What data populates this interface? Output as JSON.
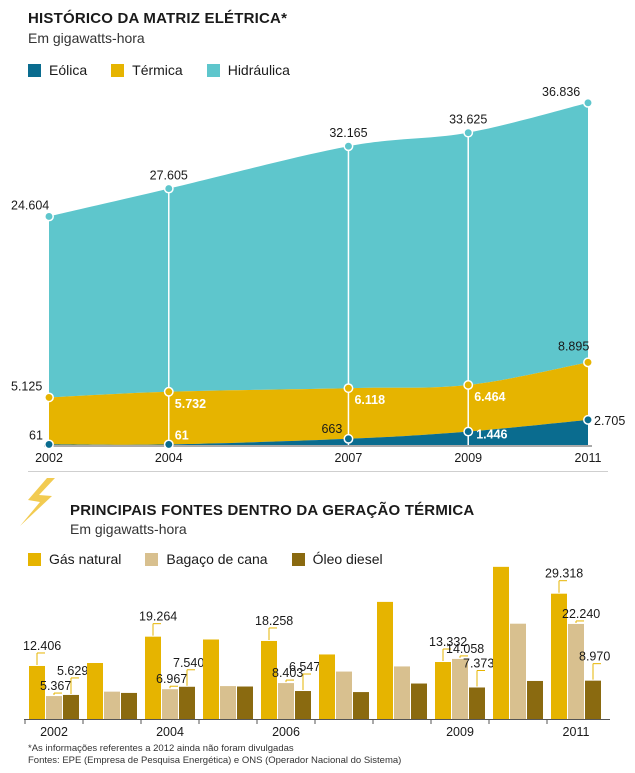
{
  "chart_data": [
    {
      "type": "area",
      "title": "HISTÓRICO DA MATRIZ ELÉTRICA*",
      "subtitle": "Em gigawatts-hora",
      "stacked": true,
      "x": [
        2002,
        2004,
        2007,
        2009,
        2011
      ],
      "x_labels": [
        "2002",
        "2004",
        "2007",
        "2009",
        "2011"
      ],
      "series": [
        {
          "name": "Eólica",
          "color": "#0a6c8f",
          "values": [
            61,
            61,
            663,
            1446,
            2705
          ],
          "labels": [
            "61",
            "61",
            "663",
            "1.446",
            "2.705"
          ]
        },
        {
          "name": "Térmica",
          "color": "#e6b400",
          "values": [
            5125,
            5732,
            6118,
            6464,
            8895
          ],
          "labels": [
            "5.125",
            "5.732",
            "6.118",
            "6.464",
            "8.895"
          ]
        },
        {
          "name": "Hidráulica",
          "color": "#5ec6cc",
          "values": [
            24604,
            27605,
            32165,
            33625,
            36836
          ],
          "labels": [
            "24.604",
            "27.605",
            "32.165",
            "33.625",
            "36.836"
          ]
        }
      ],
      "ylim": [
        0,
        38000
      ],
      "grid": false,
      "legend_position": "top-left"
    },
    {
      "type": "bar",
      "title": "PRINCIPAIS FONTES DENTRO DA GERAÇÃO TÉRMICA",
      "subtitle": "Em gigawatts-hora",
      "categories": [
        "2002",
        "2003",
        "2004",
        "2005",
        "2006",
        "2007",
        "2008",
        "2009",
        "2010",
        "2011"
      ],
      "category_labels": [
        "2002",
        "",
        "2004",
        "",
        "2006",
        "",
        "",
        "2009",
        "",
        "2011"
      ],
      "series": [
        {
          "name": "Gás natural",
          "color": "#e6b400",
          "values": [
            12406,
            13100,
            19264,
            18600,
            18258,
            15100,
            27400,
            13332,
            35600,
            29318
          ],
          "labels": [
            "12.406",
            "",
            "19.264",
            "",
            "18.258",
            "",
            "",
            "13.332",
            "",
            "29.318"
          ]
        },
        {
          "name": "Bagaço de cana",
          "color": "#d8c08f",
          "values": [
            5367,
            6400,
            6967,
            7700,
            8403,
            11100,
            12300,
            14058,
            22300,
            22240
          ],
          "labels": [
            "5.367",
            "",
            "6.967",
            "",
            "8.403",
            "",
            "",
            "14.058",
            "",
            "22.240"
          ]
        },
        {
          "name": "Óleo diesel",
          "color": "#8a6a10",
          "values": [
            5629,
            6100,
            7540,
            7600,
            6547,
            6300,
            8300,
            7373,
            8900,
            8970
          ],
          "labels": [
            "5.629",
            "",
            "7.540",
            "",
            "6.547",
            "",
            "",
            "7.373",
            "",
            "8.970"
          ]
        }
      ],
      "ylim": [
        0,
        36500
      ],
      "grid": false,
      "legend_position": "top-left"
    }
  ],
  "top_legend": [
    "Eólica",
    "Térmica",
    "Hidráulica"
  ],
  "bottom_legend": [
    "Gás natural",
    "Bagaço de cana",
    "Óleo diesel"
  ],
  "colors": {
    "eolica": "#0a6c8f",
    "termica": "#e6b400",
    "hidraulica": "#5ec6cc",
    "gas": "#e6b400",
    "bagaco": "#d8c08f",
    "oleo": "#8a6a10",
    "lightning": "#f0c232"
  },
  "footer": {
    "note": "*As informações referentes a 2012 ainda não foram divulgadas",
    "sources": "Fontes: EPE (Empresa de Pesquisa Energética) e ONS (Operador Nacional do Sistema)"
  },
  "icons": {
    "lightning": "lightning-bolt-icon"
  }
}
